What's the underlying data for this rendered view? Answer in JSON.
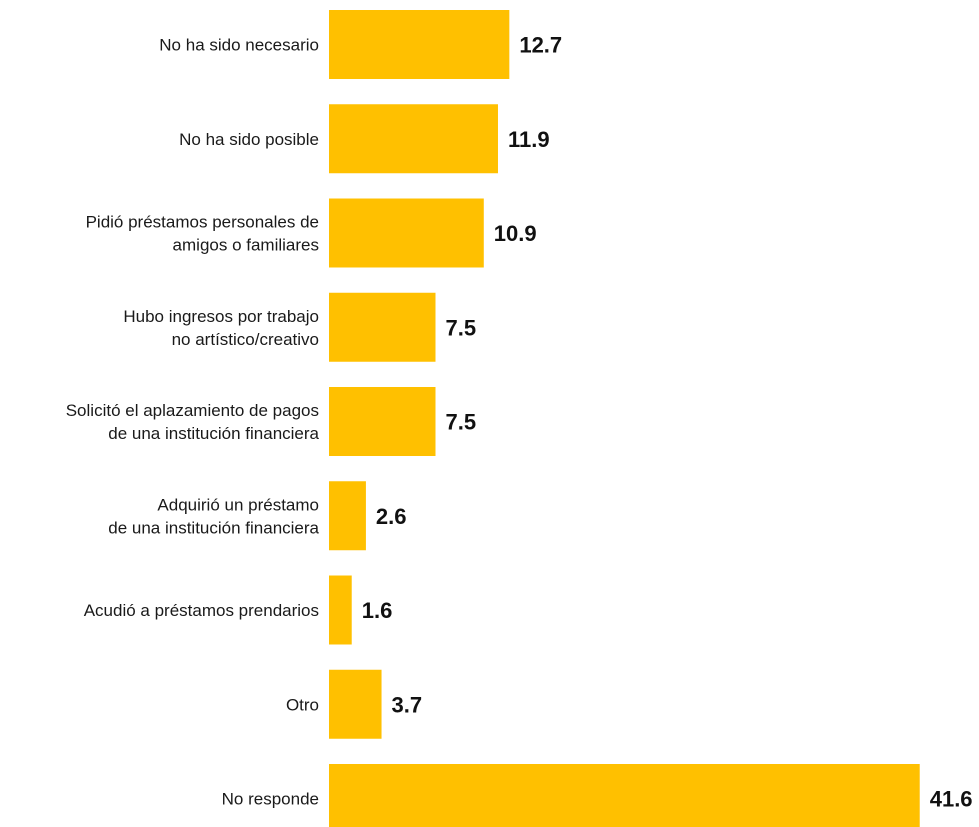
{
  "chart_data": {
    "type": "bar",
    "orientation": "horizontal",
    "categories": [
      [
        "No ha sido necesario"
      ],
      [
        "No ha sido posible"
      ],
      [
        "Pidió préstamos personales de",
        "amigos o familiares"
      ],
      [
        "Hubo ingresos por trabajo",
        "no artístico/creativo"
      ],
      [
        "Solicitó el aplazamiento de pagos",
        "de una institución financiera"
      ],
      [
        "Adquirió un préstamo",
        "de una institución financiera"
      ],
      [
        "Acudió a préstamos prendarios"
      ],
      [
        "Otro"
      ],
      [
        "No responde"
      ]
    ],
    "values": [
      12.7,
      11.9,
      10.9,
      7.5,
      7.5,
      2.6,
      1.6,
      3.7,
      41.6
    ],
    "value_labels": [
      "12.7",
      "11.9",
      "10.9",
      "7.5",
      "7.5",
      "2.6",
      "1.6",
      "3.7",
      "41.6"
    ],
    "bar_color": "#FFC000",
    "grid": false,
    "legend": "none"
  }
}
